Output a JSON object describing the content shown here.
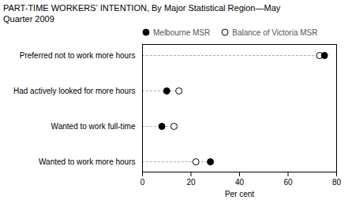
{
  "chart_data": {
    "type": "dot",
    "title": "PART-TIME WORKERS’ INTENTION, By Major Statistical Region—May\nQuarter 2009",
    "categories": [
      "Wanted to work more hours",
      "Wanted to work full-time",
      "Had actively looked for more hours",
      "Preferred not to work more hours"
    ],
    "series": [
      {
        "name": "Melbourne MSR",
        "color": "black",
        "marker": "circle",
        "values": [
          28,
          8,
          10,
          75
        ]
      },
      {
        "name": "Balance of Victoria MSR",
        "color": "white",
        "marker": "circle",
        "values": [
          22,
          13,
          15,
          73
        ]
      }
    ],
    "xlabel": "Per cent",
    "xlim": [
      0,
      80
    ],
    "xticks": [
      0,
      20,
      40,
      60,
      80
    ],
    "orientation": "horizontal",
    "grid": false,
    "legend": "top"
  }
}
